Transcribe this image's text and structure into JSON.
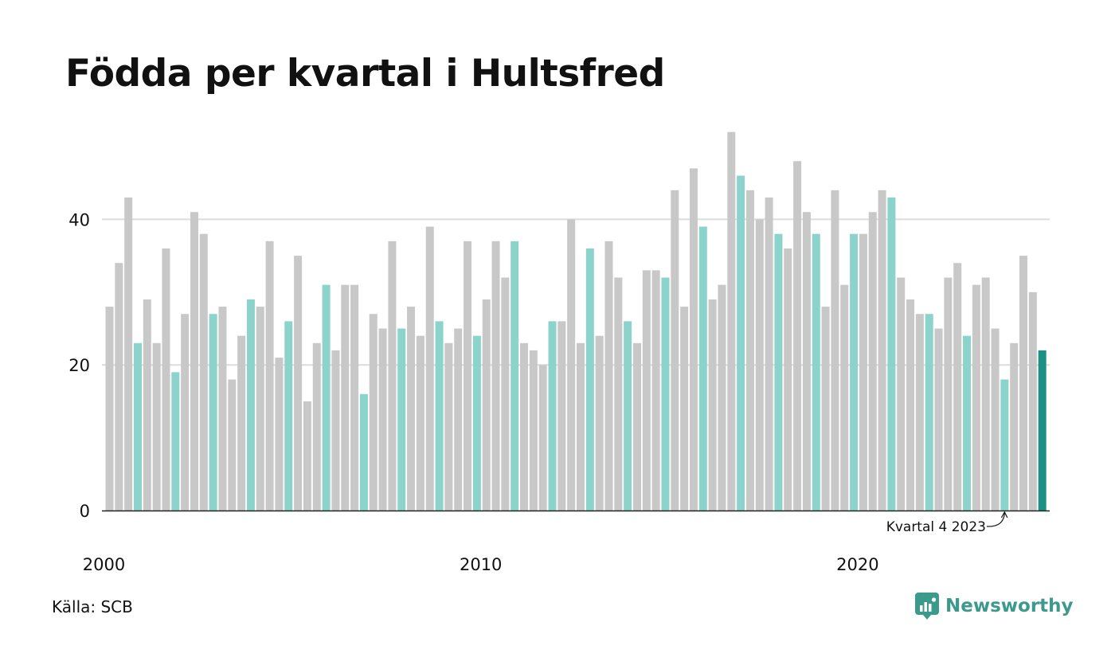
{
  "title": "Födda per kvartal i Hultsfred",
  "source": "Källa: SCB",
  "brand": "Newsworthy",
  "colors": {
    "regular_bar": "#c8c8c8",
    "q4_bar": "#8cd4cb",
    "latest_bar": "#1b9083",
    "brand": "#3c9a8c",
    "grid": "#dcdcdc",
    "axis": "#222222"
  },
  "chart_data": {
    "type": "bar",
    "title": "Födda per kvartal i Hultsfred",
    "xlabel": "",
    "ylabel": "",
    "ylim": [
      0,
      52
    ],
    "yticks": [
      0,
      20,
      40
    ],
    "grid": true,
    "x_tick_labels": [
      "2000",
      "2010",
      "2020"
    ],
    "highlight": "Q4 bars (Kvartal 4) in teal; latest bar dark teal",
    "annotation": "Kvartal 4 2023",
    "series": [
      {
        "values": [
          28,
          34,
          43,
          23,
          29,
          23,
          36,
          19,
          27,
          41,
          38,
          27,
          28,
          18,
          24,
          29,
          28,
          37,
          21,
          26,
          35,
          15,
          23,
          31,
          22,
          31,
          31,
          16,
          27,
          25,
          37,
          25,
          28,
          24,
          39,
          26,
          23,
          25,
          37,
          24,
          29,
          37,
          32,
          37,
          23,
          22,
          20,
          26,
          26,
          40,
          23,
          36,
          24,
          37,
          32,
          26,
          23,
          33,
          33,
          32,
          44,
          28,
          47,
          39,
          29,
          31,
          52,
          46,
          44,
          40,
          43,
          38,
          36,
          48,
          41,
          38,
          28,
          44,
          31,
          38,
          38,
          41,
          44,
          43,
          32,
          29,
          27,
          27,
          25,
          32,
          34,
          24,
          31,
          32,
          25,
          18,
          23,
          35,
          30,
          22
        ]
      }
    ]
  }
}
